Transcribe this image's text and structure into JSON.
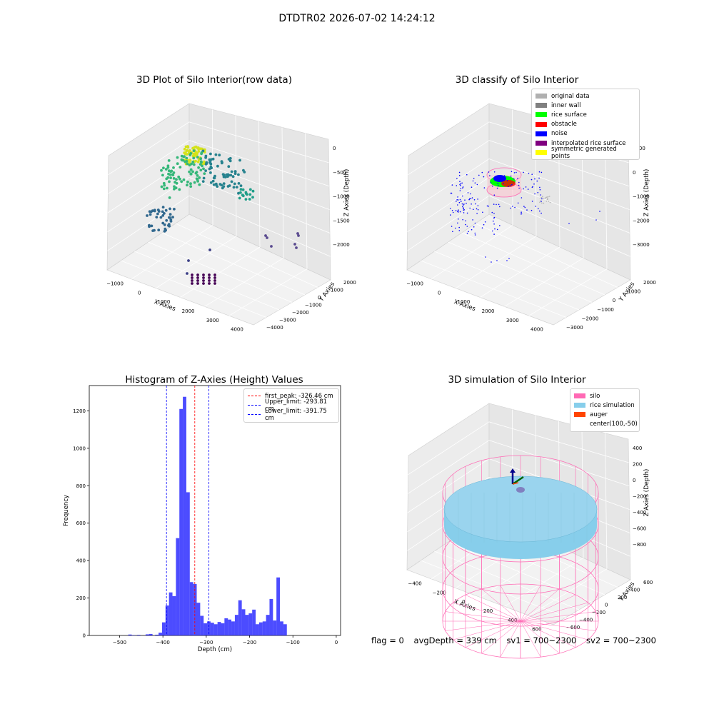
{
  "page_title": "DTDTR02 2026-07-02 14:24:12",
  "panels": {
    "p1": {
      "title": "3D Plot of Silo Interior(row data)",
      "xlabel": "X Axies",
      "ylabel": "Y Axies",
      "zlabel": "Z Axies (Depth)",
      "xticks": [
        "−1000",
        "0",
        "1000",
        "2000",
        "3000",
        "4000"
      ],
      "yticks": [
        "2000",
        "1000",
        "0",
        "−1000",
        "−2000",
        "−3000",
        "−4000"
      ],
      "zticks": [
        "0",
        "−500",
        "−1000",
        "−1500",
        "−2000"
      ]
    },
    "p2": {
      "title": "3D classify of Silo Interior",
      "xlabel": "X Axies",
      "ylabel": "Y Axies",
      "zlabel": "Z Axies (Depth)",
      "xticks": [
        "−1000",
        "0",
        "1000",
        "2000",
        "3000",
        "4000"
      ],
      "yticks": [
        "2000",
        "1000",
        "0",
        "−1000",
        "−2000",
        "−3000"
      ],
      "zticks": [
        "1000",
        "0",
        "−1000",
        "−2000",
        "−3000"
      ],
      "legend": [
        {
          "label": "original data",
          "color": "#b0b0b0"
        },
        {
          "label": "inner wall",
          "color": "#808080"
        },
        {
          "label": "rice surface",
          "color": "#00ff00"
        },
        {
          "label": "obstacle",
          "color": "#ff0000"
        },
        {
          "label": "noise",
          "color": "#0000ff"
        },
        {
          "label": "interpolated rice surface",
          "color": "#800080"
        },
        {
          "label": "symmetric generated points",
          "color": "#ffff00"
        }
      ]
    },
    "p3": {
      "title": "Histogram of Z-Axies (Height) Values",
      "xlabel": "Depth (cm)",
      "ylabel": "Frequency",
      "xticks": [
        "−500",
        "−400",
        "−300",
        "−200",
        "−100",
        "0"
      ],
      "yticks": [
        "0",
        "200",
        "400",
        "600",
        "800",
        "1000",
        "1200"
      ],
      "legend": [
        {
          "label": "first_peak: -326.46 cm",
          "color": "#ff0000"
        },
        {
          "label": "Upper_limit: -293.81 cm",
          "color": "#0000ff"
        },
        {
          "label": "Lower_limit: -391.75 cm",
          "color": "#0000ff"
        }
      ]
    },
    "p4": {
      "title": "3D simulation of Silo Interior",
      "xlabel": "X Axies",
      "ylabel": "Y Axies",
      "zlabel": "Z Axies (Depth)",
      "xticks": [
        "−400",
        "−200",
        "0",
        "200",
        "400",
        "600"
      ],
      "yticks": [
        "600",
        "400",
        "200",
        "0",
        "−200",
        "−400",
        "−600"
      ],
      "zticks": [
        "400",
        "200",
        "0",
        "−200",
        "−400",
        "−600",
        "−800"
      ],
      "legend": [
        {
          "label": "silo",
          "color": "#ff69b4"
        },
        {
          "label": "rice simulation",
          "color": "#87ceeb"
        },
        {
          "label": "auger",
          "color": "#ff4500"
        },
        {
          "label": "center(100,-50)",
          "color": ""
        }
      ]
    }
  },
  "footer": {
    "flag": "flag = 0",
    "avg": "avgDepth = 339 cm",
    "sv1": "sv1 = 700~2300",
    "sv2": "sv2 = 700~2300"
  },
  "chart_data": [
    {
      "type": "histogram",
      "title": "Histogram of Z-Axies (Height) Values",
      "xlabel": "Depth (cm)",
      "ylabel": "Frequency",
      "xlim": [
        -570,
        10
      ],
      "ylim": [
        0,
        1335
      ],
      "bin_start": -410,
      "bin_width": 8,
      "values": [
        15,
        70,
        160,
        230,
        210,
        520,
        1210,
        1275,
        765,
        285,
        275,
        175,
        105,
        65,
        75,
        68,
        60,
        72,
        65,
        92,
        85,
        75,
        110,
        188,
        140,
        110,
        118,
        138,
        60,
        70,
        75,
        110,
        195,
        80,
        310,
        75,
        60
      ],
      "low_bins": [
        {
          "x": -480,
          "v": 5
        },
        {
          "x": -472,
          "v": 2
        },
        {
          "x": -460,
          "v": 3
        },
        {
          "x": -440,
          "v": 6
        },
        {
          "x": -432,
          "v": 8
        },
        {
          "x": -418,
          "v": 4
        }
      ],
      "vlines": [
        {
          "name": "first_peak",
          "value": -326.46,
          "color": "#ff0000"
        },
        {
          "name": "Upper_limit",
          "value": -293.81,
          "color": "#0000ff"
        },
        {
          "name": "Lower_limit",
          "value": -391.75,
          "color": "#0000ff"
        }
      ]
    }
  ]
}
